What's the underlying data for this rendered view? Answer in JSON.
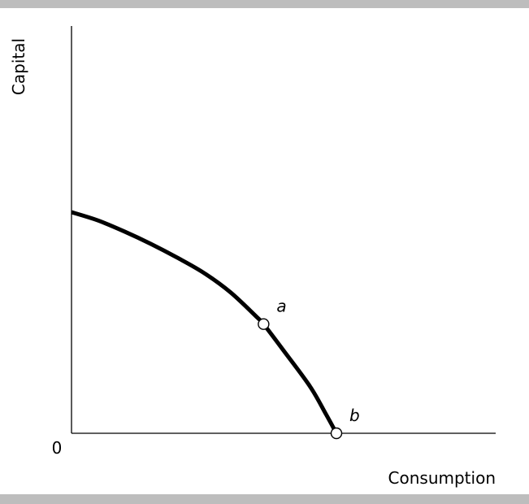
{
  "chart_data": {
    "type": "line",
    "title": "",
    "xlabel": "Consumption",
    "ylabel": "Capital",
    "origin_label": "0",
    "xlim": [
      0,
      10
    ],
    "ylim": [
      0,
      10
    ],
    "series": [
      {
        "x": [
          0,
          1,
          2,
          3,
          4,
          5,
          6,
          7,
          7.25,
          8,
          9.0,
          9.6,
          10
        ],
        "y": [
          8.0,
          7.7,
          7.3,
          6.85,
          6.35,
          5.8,
          5.1,
          4.2,
          3.95,
          3.0,
          1.7,
          0.7,
          0
        ]
      }
    ],
    "points": [
      {
        "label": "a",
        "x": 7.25,
        "y": 3.95
      },
      {
        "label": "b",
        "x": 10,
        "y": 0
      }
    ]
  },
  "colors": {
    "frame_bars": "#bdbdbd",
    "line": "#000000",
    "background": "#ffffff"
  }
}
